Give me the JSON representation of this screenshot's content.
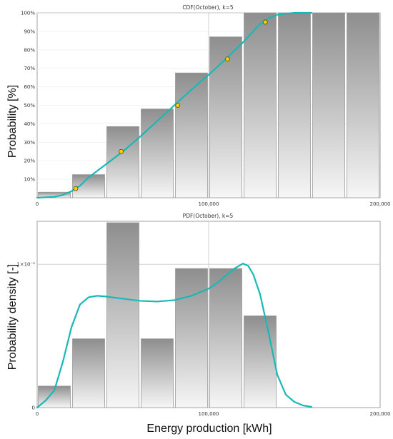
{
  "chart_data": [
    {
      "type": "bar",
      "title": "CDF(October), k=5",
      "xlabel": "",
      "ylabel": "Probability [%]",
      "xlim": [
        0,
        200000
      ],
      "ylim": [
        0,
        100
      ],
      "x_ticks": [
        "0",
        "100,000",
        "200,000"
      ],
      "y_ticks": [
        "10%",
        "20%",
        "30%",
        "40%",
        "50%",
        "60%",
        "70%",
        "80%",
        "90%",
        "100%"
      ],
      "bin_width": 20000,
      "bins": [
        {
          "start": 0,
          "end": 20000,
          "value": 3
        },
        {
          "start": 20000,
          "end": 40000,
          "value": 12.5
        },
        {
          "start": 40000,
          "end": 60000,
          "value": 38.5
        },
        {
          "start": 60000,
          "end": 80000,
          "value": 48
        },
        {
          "start": 80000,
          "end": 100000,
          "value": 67.5
        },
        {
          "start": 100000,
          "end": 120000,
          "value": 87
        },
        {
          "start": 120000,
          "end": 140000,
          "value": 100
        },
        {
          "start": 140000,
          "end": 160000,
          "value": 100
        },
        {
          "start": 160000,
          "end": 180000,
          "value": 100
        },
        {
          "start": 180000,
          "end": 200000,
          "value": 100
        }
      ],
      "curve": {
        "color": "#1ab7b7",
        "x": [
          0,
          10000,
          15000,
          20000,
          25000,
          30000,
          40000,
          50000,
          60000,
          70000,
          80000,
          90000,
          100000,
          110000,
          120000,
          125000,
          130000,
          135000,
          140000,
          150000,
          160000
        ],
        "y": [
          0,
          0.5,
          1.5,
          3.5,
          6.5,
          11,
          18,
          25,
          33,
          41.5,
          50,
          58.5,
          66.5,
          75,
          84,
          89,
          94,
          97,
          99,
          100,
          100
        ]
      },
      "markers": {
        "color": "#f5d000",
        "x": [
          22500,
          49000,
          82000,
          111000,
          133000
        ],
        "y": [
          5,
          25,
          50,
          75,
          95
        ]
      },
      "grid": true
    },
    {
      "type": "bar",
      "title": "PDF(October), k=5",
      "xlabel": "Energy production [kWh]",
      "ylabel": "Probability density [-]",
      "xlim": [
        0,
        200000
      ],
      "ylim": [
        0,
        1.3e-05
      ],
      "x_ticks": [
        "0",
        "100,000",
        "200,000"
      ],
      "y_ticks": [
        {
          "value": 0,
          "label": "0"
        },
        {
          "value": 1e-05,
          "label": "1×10⁻⁵"
        }
      ],
      "bin_width": 20000,
      "bins": [
        {
          "start": 0,
          "end": 20000,
          "value": 1.5e-06
        },
        {
          "start": 20000,
          "end": 40000,
          "value": 4.8e-06
        },
        {
          "start": 40000,
          "end": 60000,
          "value": 1.29e-05
        },
        {
          "start": 60000,
          "end": 80000,
          "value": 4.8e-06
        },
        {
          "start": 80000,
          "end": 100000,
          "value": 9.7e-06
        },
        {
          "start": 100000,
          "end": 120000,
          "value": 9.7e-06
        },
        {
          "start": 120000,
          "end": 140000,
          "value": 6.4e-06
        }
      ],
      "curve": {
        "color": "#1ab7b7",
        "x": [
          0,
          5000,
          10000,
          15000,
          20000,
          25000,
          30000,
          35000,
          40000,
          50000,
          60000,
          70000,
          80000,
          90000,
          100000,
          105000,
          110000,
          115000,
          120000,
          123000,
          126000,
          130000,
          135000,
          140000,
          145000,
          150000,
          155000,
          160000
        ],
        "y": [
          0,
          5e-07,
          1.2e-06,
          3.2e-06,
          5.6e-06,
          7.2e-06,
          7.7e-06,
          7.8e-06,
          7.75e-06,
          7.6e-06,
          7.45e-06,
          7.4e-06,
          7.5e-06,
          7.8e-06,
          8.3e-06,
          8.7e-06,
          9.2e-06,
          9.7e-06,
          1.005e-05,
          9.9e-06,
          9.3e-06,
          7.9e-06,
          5.2e-06,
          2.3e-06,
          9e-07,
          4e-07,
          1.5e-07,
          5e-08
        ]
      },
      "grid": true
    }
  ]
}
